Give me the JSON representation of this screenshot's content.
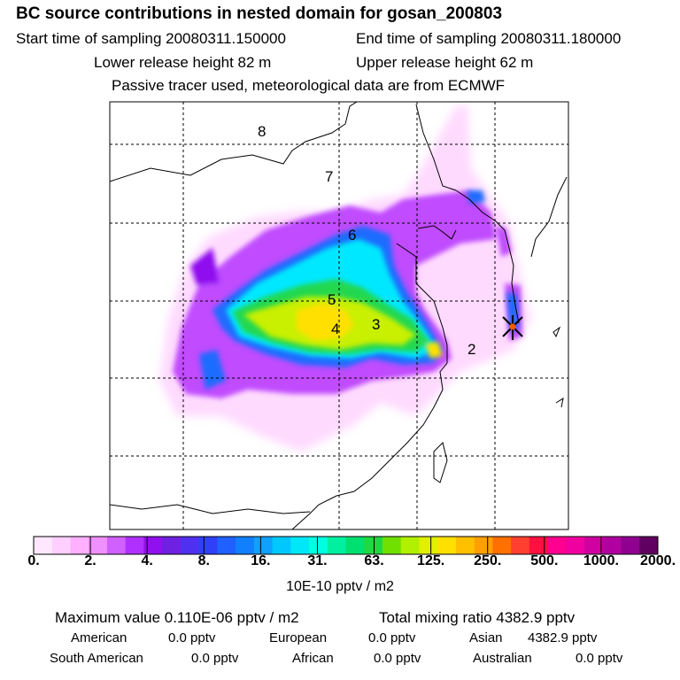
{
  "header": {
    "title": "BC  source contributions in nested domain for gosan_200803",
    "start_time": "Start time of sampling 20080311.150000",
    "end_time": "End time of sampling 20080311.180000",
    "lower_height": "Lower release height   82 m",
    "upper_height": "Upper release height   62 m",
    "tracer_note": "Passive tracer used, meteorological data are from ECMWF"
  },
  "map": {
    "region_labels": [
      "8",
      "7",
      "6",
      "5",
      "4",
      "3",
      "2"
    ]
  },
  "colorbar": {
    "colors": [
      "#ffe8ff",
      "#ffd0ff",
      "#ffb0ff",
      "#f090ff",
      "#d060ff",
      "#b030ff",
      "#9010f0",
      "#7020e0",
      "#5030f0",
      "#3040f8",
      "#2060ff",
      "#1080ff",
      "#10a0ff",
      "#00c8ff",
      "#00e8f8",
      "#00ffe0",
      "#00f0a0",
      "#00e070",
      "#20d840",
      "#70e000",
      "#b0f000",
      "#e0f000",
      "#ffe000",
      "#ffc000",
      "#ffa000",
      "#ff7000",
      "#ff4030",
      "#ff1040",
      "#ff0090",
      "#f000a0",
      "#d000a0",
      "#b000a0",
      "#900090",
      "#600060"
    ],
    "tick_labels": [
      "0.",
      "2.",
      "4.",
      "8.",
      "16.",
      "31.",
      "63.",
      "125.",
      "250.",
      "500.",
      "1000.",
      "2000."
    ],
    "units": "10E-10 pptv / m2"
  },
  "stats": {
    "max_value": "Maximum value  0.110E-06 pptv / m2",
    "total_mixing": "Total mixing ratio    4382.9 pptv",
    "american_label": "American",
    "american_value": "0.0 pptv",
    "european_label": "European",
    "european_value": "0.0 pptv",
    "asian_label": "Asian",
    "asian_value": "4382.9 pptv",
    "south_american_label": "South American",
    "south_american_value": "0.0 pptv",
    "african_label": "African",
    "african_value": "0.0 pptv",
    "australian_label": "Australian",
    "australian_value": "0.0 pptv"
  }
}
